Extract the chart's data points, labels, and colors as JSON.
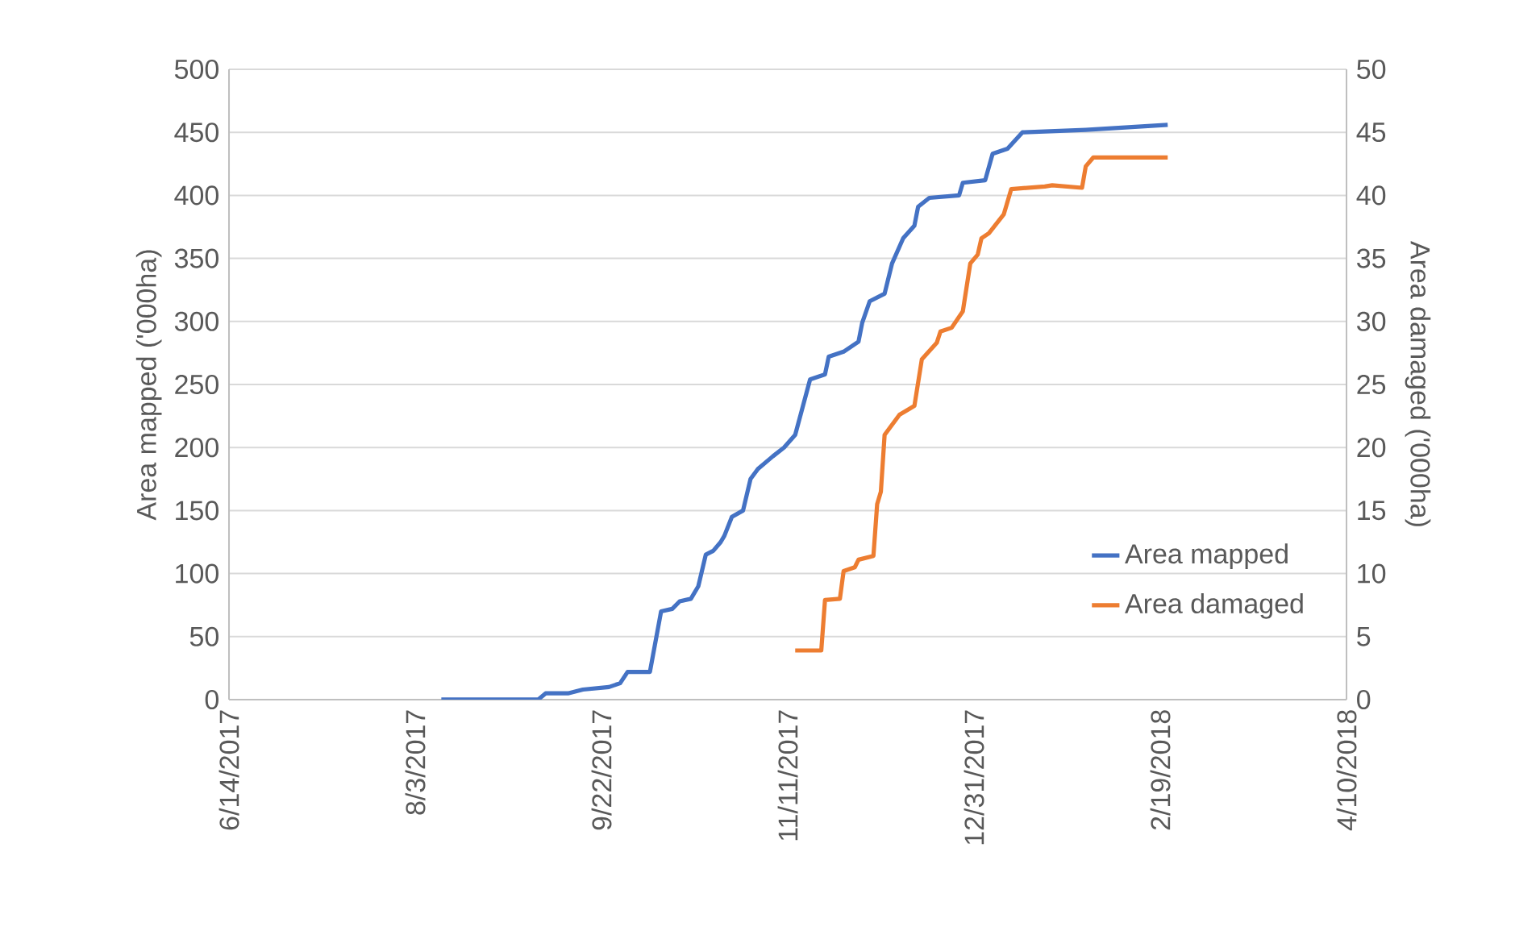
{
  "chart_data": {
    "type": "line",
    "ylabel": "Area mapped ('000ha)",
    "y2label": "Area damaged ('000ha)",
    "xlim": [
      "2017-06-14",
      "2018-04-10"
    ],
    "xticks": [
      {
        "value": "2017-06-14",
        "label": "6/14/2017"
      },
      {
        "value": "2017-08-03",
        "label": "8/3/2017"
      },
      {
        "value": "2017-09-22",
        "label": "9/22/2017"
      },
      {
        "value": "2017-11-11",
        "label": "11/11/2017"
      },
      {
        "value": "2017-12-31",
        "label": "12/31/2017"
      },
      {
        "value": "2018-02-19",
        "label": "2/19/2018"
      },
      {
        "value": "2018-04-10",
        "label": "4/10/2018"
      }
    ],
    "ylim": [
      0,
      500
    ],
    "yticks": [
      0,
      50,
      100,
      150,
      200,
      250,
      300,
      350,
      400,
      450,
      500
    ],
    "y2lim": [
      0,
      50
    ],
    "y2ticks": [
      0,
      5,
      10,
      15,
      20,
      25,
      30,
      35,
      40,
      45,
      50
    ],
    "grid": "y",
    "legend": "right",
    "marker": "none",
    "line_style": "solid",
    "series": [
      {
        "name": "Area mapped",
        "color": "#4472c4",
        "x": [
          "2017-08-10",
          "2017-09-05",
          "2017-09-07",
          "2017-09-13",
          "2017-09-17",
          "2017-09-24",
          "2017-09-27",
          "2017-09-29",
          "2017-10-05",
          "2017-10-08",
          "2017-10-11",
          "2017-10-13",
          "2017-10-16",
          "2017-10-18",
          "2017-10-20",
          "2017-10-22",
          "2017-10-24",
          "2017-10-25",
          "2017-10-27",
          "2017-10-30",
          "2017-11-01",
          "2017-11-03",
          "2017-11-07",
          "2017-11-10",
          "2017-11-13",
          "2017-11-17",
          "2017-11-21",
          "2017-11-22",
          "2017-11-26",
          "2017-11-30",
          "2017-12-01",
          "2017-12-03",
          "2017-12-07",
          "2017-12-09",
          "2017-12-12",
          "2017-12-15",
          "2017-12-16",
          "2017-12-19",
          "2017-12-27",
          "2017-12-28",
          "2018-01-03",
          "2018-01-05",
          "2018-01-09",
          "2018-01-13",
          "2018-01-30",
          "2018-02-21"
        ],
        "values": [
          0,
          0,
          5,
          5,
          8,
          10,
          13,
          22,
          22,
          70,
          72,
          78,
          80,
          90,
          115,
          118,
          125,
          130,
          145,
          150,
          175,
          183,
          193,
          200,
          210,
          254,
          258,
          272,
          276,
          284,
          299,
          316,
          322,
          346,
          366,
          376,
          391,
          398,
          400,
          410,
          412,
          433,
          437,
          450,
          452,
          456
        ]
      },
      {
        "name": "Area damaged",
        "color": "#ed7d31",
        "axis": "y2",
        "x": [
          "2017-11-13",
          "2017-11-20",
          "2017-11-21",
          "2017-11-25",
          "2017-11-26",
          "2017-11-29",
          "2017-11-30",
          "2017-12-04",
          "2017-12-05",
          "2017-12-06",
          "2017-12-07",
          "2017-12-11",
          "2017-12-15",
          "2017-12-17",
          "2017-12-21",
          "2017-12-22",
          "2017-12-25",
          "2017-12-28",
          "2017-12-30",
          "2018-01-01",
          "2018-01-02",
          "2018-01-04",
          "2018-01-08",
          "2018-01-10",
          "2018-01-19",
          "2018-01-21",
          "2018-01-29",
          "2018-01-30",
          "2018-02-01",
          "2018-02-21"
        ],
        "values": [
          3.9,
          3.9,
          7.9,
          8,
          10.2,
          10.5,
          11.1,
          11.4,
          15.5,
          16.5,
          21,
          22.6,
          23.3,
          27,
          28.3,
          29.2,
          29.5,
          30.8,
          34.6,
          35.3,
          36.6,
          37,
          38.5,
          40.5,
          40.7,
          40.8,
          40.6,
          42.3,
          43,
          43
        ]
      }
    ]
  }
}
